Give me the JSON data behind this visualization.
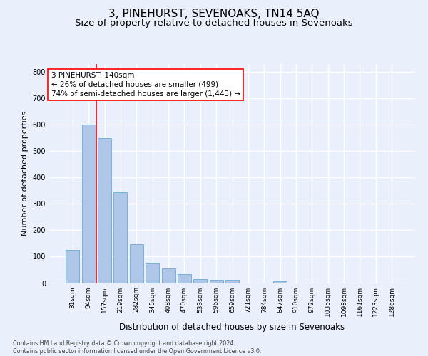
{
  "title": "3, PINEHURST, SEVENOAKS, TN14 5AQ",
  "subtitle": "Size of property relative to detached houses in Sevenoaks",
  "xlabel": "Distribution of detached houses by size in Sevenoaks",
  "ylabel": "Number of detached properties",
  "categories": [
    "31sqm",
    "94sqm",
    "157sqm",
    "219sqm",
    "282sqm",
    "345sqm",
    "408sqm",
    "470sqm",
    "533sqm",
    "596sqm",
    "659sqm",
    "721sqm",
    "784sqm",
    "847sqm",
    "910sqm",
    "972sqm",
    "1035sqm",
    "1098sqm",
    "1161sqm",
    "1223sqm",
    "1286sqm"
  ],
  "values": [
    125,
    600,
    550,
    345,
    148,
    75,
    55,
    33,
    16,
    13,
    13,
    0,
    0,
    7,
    0,
    0,
    0,
    0,
    0,
    0,
    0
  ],
  "bar_color": "#aec6e8",
  "bar_edgecolor": "#6aaad4",
  "annotation_box_text": "3 PINEHURST: 140sqm\n← 26% of detached houses are smaller (499)\n74% of semi-detached houses are larger (1,443) →",
  "vline_color": "red",
  "vline_x": 1.5,
  "ylim": [
    0,
    830
  ],
  "yticks": [
    0,
    100,
    200,
    300,
    400,
    500,
    600,
    700,
    800
  ],
  "bg_color": "#eaf0fb",
  "grid_color": "white",
  "footer_line1": "Contains HM Land Registry data © Crown copyright and database right 2024.",
  "footer_line2": "Contains public sector information licensed under the Open Government Licence v3.0.",
  "title_fontsize": 11,
  "subtitle_fontsize": 9.5,
  "xlabel_fontsize": 8.5,
  "ylabel_fontsize": 8,
  "annotation_fontsize": 7.5,
  "tick_fontsize": 6.5,
  "ytick_fontsize": 7,
  "footer_fontsize": 5.8
}
